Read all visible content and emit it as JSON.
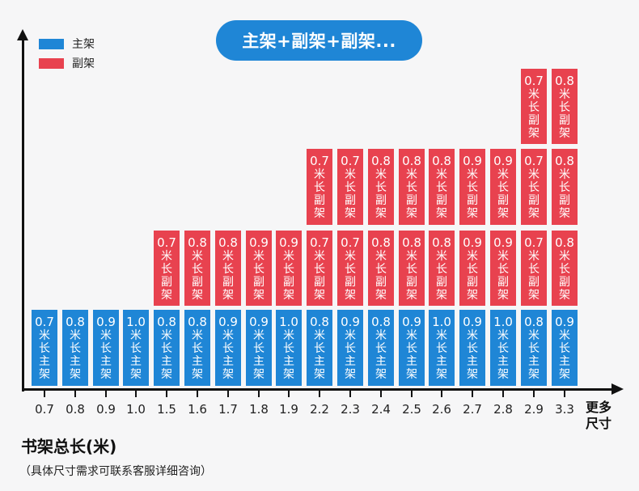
{
  "title_pill": "主架+副架+副架...",
  "legend": [
    {
      "label": "主架",
      "color": "#1f86d6"
    },
    {
      "label": "副架",
      "color": "#e8424f"
    }
  ],
  "axis": {
    "x_title": "书架总长(米)",
    "x_more_line1": "更多",
    "x_more_line2": "尺寸",
    "note": "（具体尺寸需求可联系客服详细咨询）"
  },
  "chart_data": {
    "type": "bar",
    "subtype": "stacked-segments",
    "title": "主架+副架+副架...",
    "xlabel": "书架总长(米)",
    "ylabel": "",
    "legend_position": "top-left",
    "grid": false,
    "categories": [
      "0.7",
      "0.8",
      "0.9",
      "1.0",
      "1.5",
      "1.6",
      "1.7",
      "1.8",
      "1.9",
      "2.2",
      "2.3",
      "2.4",
      "2.5",
      "2.6",
      "2.7",
      "2.8",
      "2.9",
      "3.3"
    ],
    "series": [
      {
        "name": "主架",
        "color": "#1f86d6",
        "values": [
          "0.7",
          "0.8",
          "0.9",
          "1.0",
          "0.8",
          "0.8",
          "0.9",
          "0.9",
          "1.0",
          "0.8",
          "0.9",
          "0.8",
          "0.9",
          "1.0",
          "0.9",
          "1.0",
          "0.8",
          "0.9"
        ]
      },
      {
        "name": "副架 (1st)",
        "color": "#e8424f",
        "values": [
          null,
          null,
          null,
          null,
          "0.7",
          "0.8",
          "0.8",
          "0.9",
          "0.9",
          "0.7",
          "0.7",
          "0.8",
          "0.8",
          "0.8",
          "0.9",
          "0.9",
          "0.7",
          "0.8"
        ]
      },
      {
        "name": "副架 (2nd)",
        "color": "#e8424f",
        "values": [
          null,
          null,
          null,
          null,
          null,
          null,
          null,
          null,
          null,
          "0.7",
          "0.7",
          "0.8",
          "0.8",
          "0.8",
          "0.9",
          "0.9",
          "0.7",
          "0.8"
        ]
      },
      {
        "name": "副架 (3rd)",
        "color": "#e8424f",
        "values": [
          null,
          null,
          null,
          null,
          null,
          null,
          null,
          null,
          null,
          null,
          null,
          null,
          null,
          null,
          null,
          null,
          "0.7",
          "0.8"
        ]
      }
    ],
    "segment_text": {
      "main": [
        "米",
        "长",
        "主",
        "架"
      ],
      "sub": [
        "米",
        "长",
        "副",
        "架"
      ]
    },
    "extra_tick": "更多尺寸"
  }
}
